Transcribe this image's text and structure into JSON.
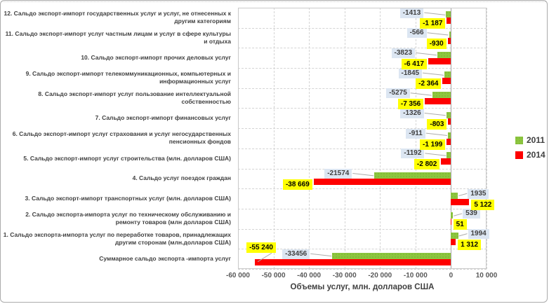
{
  "chart_data": {
    "type": "bar",
    "orientation": "horizontal",
    "title": "",
    "xlabel": "Объемы услуг, млн. долларов США",
    "xlim": [
      -60000,
      10000
    ],
    "grid": true,
    "x_ticks": [
      {
        "value": -60000,
        "label": "-60 000"
      },
      {
        "value": -50000,
        "label": "-50 000"
      },
      {
        "value": -40000,
        "label": "-40 000"
      },
      {
        "value": -30000,
        "label": "-30 000"
      },
      {
        "value": -20000,
        "label": "-20 000"
      },
      {
        "value": -10000,
        "label": "-10 000"
      },
      {
        "value": 0,
        "label": "0"
      },
      {
        "value": 10000,
        "label": "10 000"
      }
    ],
    "legend": {
      "position": "right",
      "entries": [
        {
          "name": "2011",
          "color": "#8dc63f"
        },
        {
          "name": "2014",
          "color": "#fe0000"
        }
      ]
    },
    "categories": [
      "12. Сальдо экспорт-импорт государственных услуг и услуг, не отнесенных к другим категориям",
      "11. Сальдо экспорт-импорт услуг частным лицам и услуг в сфере культуры и отдыха",
      "10. Сальдо экспорт-импорт прочих деловых услуг",
      "9. Сальдо экспорт-импорт телекоммуникационных, компьютерных и информационных услуг",
      "8. Сальдо экспорт-импорт услуг пользование интеллектуальной собственностью",
      "7. Сальдо экспорт-импорт финансовых услуг",
      "6. Сальдо экспорт-импорт услуг страхования и услуг негосударственных пенсионных фондов",
      "5. Сальдо экспорт-импорт услуг строительства (млн. долларов США)",
      "4. Сальдо услуг поездок граждан",
      "3. Сальдо экспорт-импорт транспортных услуг (млн. долларов США)",
      "2. Сальдо экспорта-импорта услуг по техническому обслуживанию и ремонту товаров (млн долларов США)",
      "1. Сальдо экспорта-импорта услуг по переработке товаров, принадлежащих другим сторонам (млн.долларов США)",
      "Суммарное сальдо экспорта -импорта услуг"
    ],
    "series": [
      {
        "name": "2011",
        "color": "#8dc63f",
        "label_bg": "#dce6f2",
        "values": [
          -1413,
          -566,
          -3823,
          -1845,
          -5275,
          -1326,
          -911,
          -1192,
          -21574,
          1935,
          539,
          1994,
          -33456
        ],
        "labels": [
          "-1413",
          "-566",
          "-3823",
          "-1845",
          "-5275",
          "-1326",
          "-911",
          "-1192",
          "-21574",
          "1935",
          "539",
          "1994",
          "-33456"
        ]
      },
      {
        "name": "2014",
        "color": "#fe0000",
        "label_bg": "#ffff00",
        "values": [
          -1187,
          -930,
          -6417,
          -2364,
          -7356,
          -803,
          -1199,
          -2802,
          -38669,
          5122,
          51,
          1312,
          -55240
        ],
        "labels": [
          "-1 187",
          "-930",
          "-6 417",
          "-2 364",
          "-7 356",
          "-803",
          "-1 199",
          "-2 802",
          "-38 669",
          "5 122",
          "51",
          "1 312",
          "-55 240"
        ]
      }
    ]
  }
}
